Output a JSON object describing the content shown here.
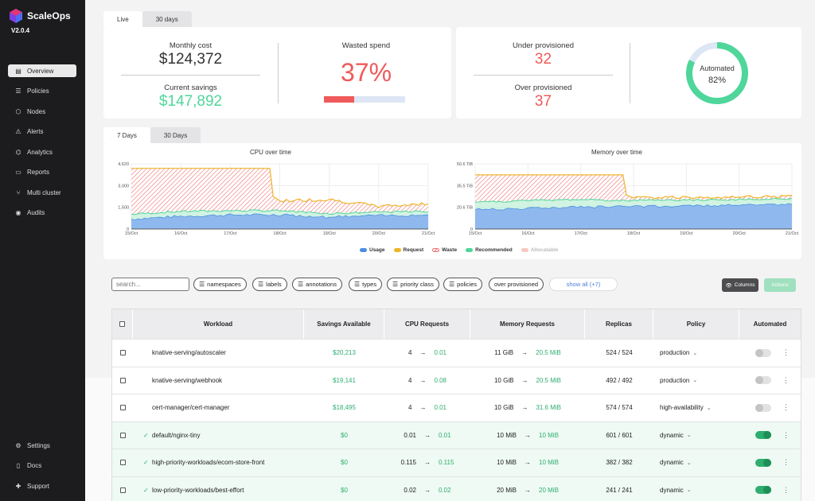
{
  "app": {
    "name": "ScaleOps",
    "version": "V2.0.4"
  },
  "sidebar": {
    "items": [
      {
        "label": "Overview",
        "icon": "overview-icon",
        "glyph": "▤",
        "active": true
      },
      {
        "label": "Policies",
        "icon": "policies-icon",
        "glyph": "☰",
        "active": false
      },
      {
        "label": "Nodes",
        "icon": "nodes-icon",
        "glyph": "⬡",
        "active": false
      },
      {
        "label": "Alerts",
        "icon": "alerts-icon",
        "glyph": "⚠",
        "active": false
      },
      {
        "label": "Analytics",
        "icon": "analytics-icon",
        "glyph": "⌬",
        "active": false
      },
      {
        "label": "Reports",
        "icon": "reports-icon",
        "glyph": "▭",
        "active": false
      },
      {
        "label": "Multi cluster",
        "icon": "multi-cluster-icon",
        "glyph": "⑂",
        "active": false
      },
      {
        "label": "Audits",
        "icon": "audits-icon",
        "glyph": "◉",
        "active": false
      }
    ],
    "bottom": [
      {
        "label": "Settings",
        "icon": "settings-icon",
        "glyph": "⚙"
      },
      {
        "label": "Docs",
        "icon": "docs-icon",
        "glyph": "▯"
      },
      {
        "label": "Support",
        "icon": "support-icon",
        "glyph": "✚"
      }
    ]
  },
  "top_tabs": [
    "Live",
    "30 days"
  ],
  "cost": {
    "monthly_cost_label": "Monthly cost",
    "monthly_cost": "$124,372",
    "savings_label": "Current savings",
    "savings": "$147,892",
    "wasted_label": "Wasted spend",
    "wasted": "37%",
    "wasted_fraction": 0.37
  },
  "provisioning": {
    "under_label": "Under provisioned",
    "under": "32",
    "over_label": "Over provisioned",
    "over": "37",
    "automated_label": "Automated",
    "automated": "82%",
    "automated_fraction": 0.82
  },
  "chart_tabs": [
    "7 Days",
    "30 Days"
  ],
  "chart_data": [
    {
      "type": "area",
      "title": "CPU over time",
      "x": [
        "15/Oct",
        "16/Oct",
        "17/Oct",
        "18/Oct",
        "19/Oct",
        "20/Oct",
        "21/Oct"
      ],
      "ytick_labels": [
        "0",
        "1,500",
        "3,000",
        "4,620"
      ],
      "ylim": [
        0,
        4620
      ],
      "series": [
        {
          "name": "Usage",
          "values": [
            700,
            900,
            1000,
            1000,
            850,
            950,
            1000
          ]
        },
        {
          "name": "Request",
          "values": [
            4300,
            4300,
            4300,
            2000,
            2100,
            1600,
            1800
          ]
        },
        {
          "name": "Recommended",
          "values": [
            1050,
            1250,
            1300,
            1300,
            1100,
            1200,
            1250
          ]
        }
      ]
    },
    {
      "type": "area",
      "title": "Memory over time",
      "x": [
        "15/Oct",
        "16/Oct",
        "17/Oct",
        "18/Oct",
        "19/Oct",
        "20/Oct",
        "21/Oct"
      ],
      "ytick_labels": [
        "0",
        "20.6 TiB",
        "35.5 TiB",
        "50.6 TiB"
      ],
      "ylim": [
        0,
        50.6
      ],
      "series": [
        {
          "name": "Usage",
          "values": [
            15,
            16,
            17,
            17.5,
            18,
            18.5,
            19
          ]
        },
        {
          "name": "Request",
          "values": [
            42,
            42,
            42,
            24,
            24.5,
            25,
            25
          ]
        },
        {
          "name": "Recommended",
          "values": [
            21,
            22,
            23,
            22,
            22.5,
            23,
            23.5
          ]
        }
      ]
    }
  ],
  "legend": [
    {
      "name": "Usage",
      "color": "#4a8fe0",
      "style": "fill"
    },
    {
      "name": "Request",
      "color": "#f0b429",
      "style": "fill"
    },
    {
      "name": "Waste",
      "color": "#ef7070",
      "style": "hatch"
    },
    {
      "name": "Recommended",
      "color": "#4fd69a",
      "style": "fill"
    },
    {
      "name": "Allocatable",
      "color": "#f7c9c0",
      "style": "fill",
      "muted": true
    }
  ],
  "filters": {
    "search_placeholder": "search...",
    "chips": [
      "namespaces",
      "labels",
      "annotations",
      "types",
      "priority class",
      "policies",
      "over provisioned"
    ],
    "show_all": "show all (+7)",
    "columns": "Columns",
    "actions": "Actions"
  },
  "table": {
    "headers": [
      "Workload",
      "Savings Available",
      "CPU Requests",
      "Memory Requests",
      "Replicas",
      "Policy",
      "Automated"
    ],
    "rows": [
      {
        "workload": "knative-serving/autoscaler",
        "savings": "$20,213",
        "cpu_from": "4",
        "cpu_to": "0.01",
        "mem_from": "11 GiB",
        "mem_to": "20.5 MiB",
        "replicas": "524 / 524",
        "policy": "production",
        "automated": false
      },
      {
        "workload": "knative-serving/webhook",
        "savings": "$19,141",
        "cpu_from": "4",
        "cpu_to": "0.08",
        "mem_from": "10 GiB",
        "mem_to": "20.5 MiB",
        "replicas": "492 / 492",
        "policy": "production",
        "automated": false
      },
      {
        "workload": "cert-manager/cert-manager",
        "savings": "$18,495",
        "cpu_from": "4",
        "cpu_to": "0.01",
        "mem_from": "10 GiB",
        "mem_to": "31.6 MiB",
        "replicas": "574 / 574",
        "policy": "high-availability",
        "automated": false
      },
      {
        "workload": "default/nginx-tiny",
        "savings": "$0",
        "cpu_from": "0.01",
        "cpu_to": "0.01",
        "mem_from": "10 MiB",
        "mem_to": "10 MiB",
        "replicas": "601 / 601",
        "policy": "dynamic",
        "automated": true
      },
      {
        "workload": "high-priority-workloads/ecom-store-front",
        "savings": "$0",
        "cpu_from": "0.115",
        "cpu_to": "0.115",
        "mem_from": "10 MiB",
        "mem_to": "10 MiB",
        "replicas": "382 / 382",
        "policy": "dynamic",
        "automated": true
      },
      {
        "workload": "low-priority-workloads/best-effort",
        "savings": "$0",
        "cpu_from": "0.02",
        "cpu_to": "0.02",
        "mem_from": "20 MiB",
        "mem_to": "20 MiB",
        "replicas": "241 / 241",
        "policy": "dynamic",
        "automated": true
      }
    ]
  }
}
